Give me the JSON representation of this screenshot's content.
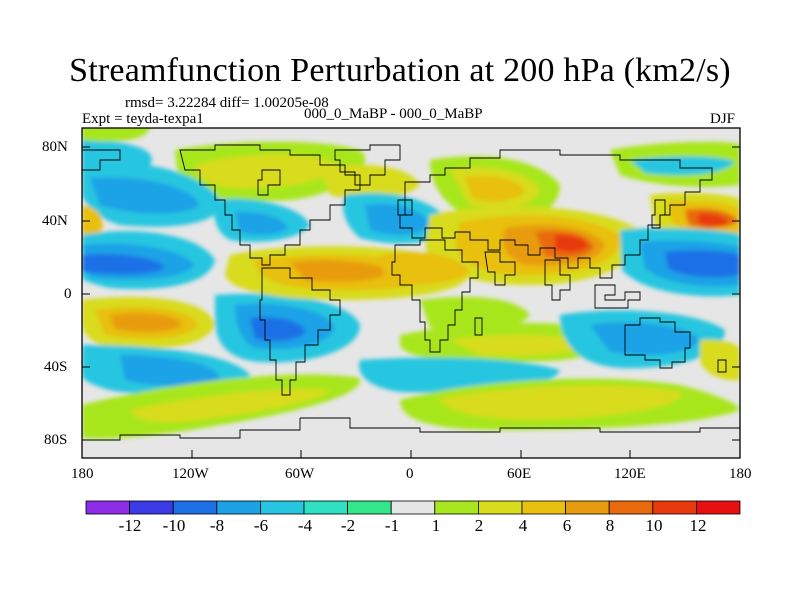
{
  "title": "Streamfunction Perturbation at 200 hPa (km2/s)",
  "stats_line": "rmsd= 3.22284 diff= 1.00205e-08",
  "left_label": "Expt = teyda-texpa1",
  "center_label": "000_0_MaBP - 000_0_MaBP",
  "right_label": "DJF",
  "lat_ticks": [
    "80N",
    "40N",
    "0",
    "40S",
    "80S"
  ],
  "lon_ticks": [
    "180",
    "120W",
    "60W",
    "0",
    "60E",
    "120E",
    "180"
  ],
  "colorbar": {
    "labels": [
      "-12",
      "-10",
      "-8",
      "-6",
      "-4",
      "-2",
      "-1",
      "1",
      "2",
      "4",
      "6",
      "8",
      "10",
      "12"
    ],
    "colors": [
      "#8e2de8",
      "#3a3ae6",
      "#1d6fe6",
      "#1da2e6",
      "#26c6e0",
      "#2fe0c2",
      "#33e68a",
      "#e6e6e6",
      "#a8e61f",
      "#d8dc1c",
      "#e8c010",
      "#e89c10",
      "#e86a0c",
      "#e83a0c",
      "#e61010"
    ]
  },
  "chart_data": {
    "type": "contour-map",
    "title": "Streamfunction Perturbation at 200 hPa (km2/s)",
    "variable": "streamfunction perturbation",
    "units": "km2/s",
    "level_hPa": 200,
    "season": "DJF",
    "rmsd": 3.22284,
    "diff": 1.00205e-08,
    "x_axis": {
      "label": "longitude",
      "range": [
        -180,
        180
      ],
      "ticks": [
        -180,
        -120,
        -60,
        0,
        60,
        120,
        180
      ]
    },
    "y_axis": {
      "label": "latitude",
      "range": [
        -90,
        90
      ],
      "ticks": [
        80,
        40,
        0,
        -40,
        -80
      ]
    },
    "contour_levels": [
      -12,
      -10,
      -8,
      -6,
      -4,
      -2,
      -1,
      1,
      2,
      4,
      6,
      8,
      10,
      12
    ],
    "features": [
      {
        "lon": 90,
        "lat": 28,
        "value": 10
      },
      {
        "lon": 170,
        "lat": 40,
        "value": 10
      },
      {
        "lon": -165,
        "lat": -15,
        "value": 8
      },
      {
        "lon": -20,
        "lat": 10,
        "value": 6
      },
      {
        "lon": -15,
        "lat": 60,
        "value": 6
      },
      {
        "lon": -170,
        "lat": 15,
        "value": -8
      },
      {
        "lon": 155,
        "lat": 15,
        "value": -8
      },
      {
        "lon": -70,
        "lat": -20,
        "value": -8
      },
      {
        "lon": -5,
        "lat": 45,
        "value": -4
      },
      {
        "lon": 60,
        "lat": 65,
        "value": -2
      },
      {
        "lon": 115,
        "lat": -62,
        "value": 2
      },
      {
        "lon": -120,
        "lat": -55,
        "value": 2
      }
    ]
  }
}
